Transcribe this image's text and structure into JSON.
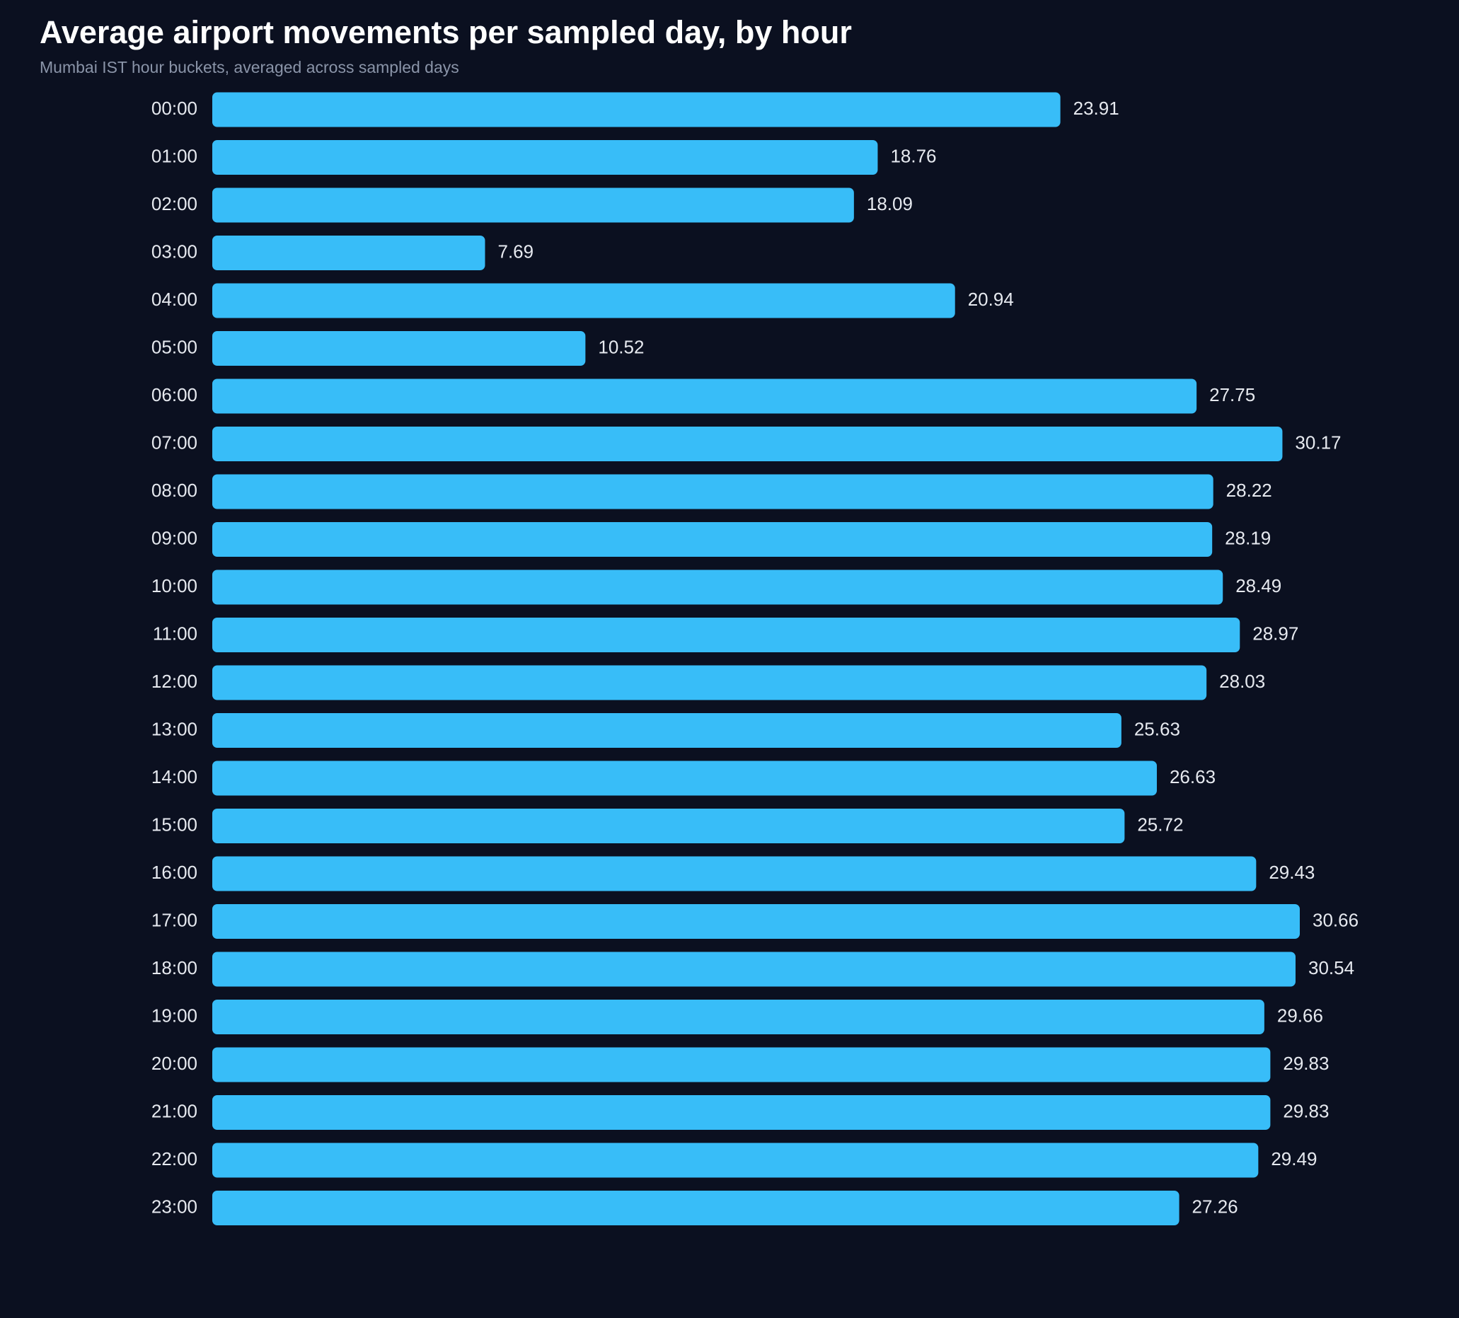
{
  "chart_data": {
    "type": "barh",
    "title": "Average airport movements per sampled day, by hour",
    "subtitle": "Mumbai IST hour buckets, averaged across sampled days",
    "categories": [
      "00:00",
      "01:00",
      "02:00",
      "03:00",
      "04:00",
      "05:00",
      "06:00",
      "07:00",
      "08:00",
      "09:00",
      "10:00",
      "11:00",
      "12:00",
      "13:00",
      "14:00",
      "15:00",
      "16:00",
      "17:00",
      "18:00",
      "19:00",
      "20:00",
      "21:00",
      "22:00",
      "23:00"
    ],
    "values": [
      23.91,
      18.76,
      18.09,
      7.69,
      20.94,
      10.52,
      27.75,
      30.17,
      28.22,
      28.19,
      28.49,
      28.97,
      28.03,
      25.63,
      26.63,
      25.72,
      29.43,
      30.66,
      30.54,
      29.66,
      29.83,
      29.83,
      29.49,
      27.26
    ],
    "color": "#38bdf8"
  }
}
